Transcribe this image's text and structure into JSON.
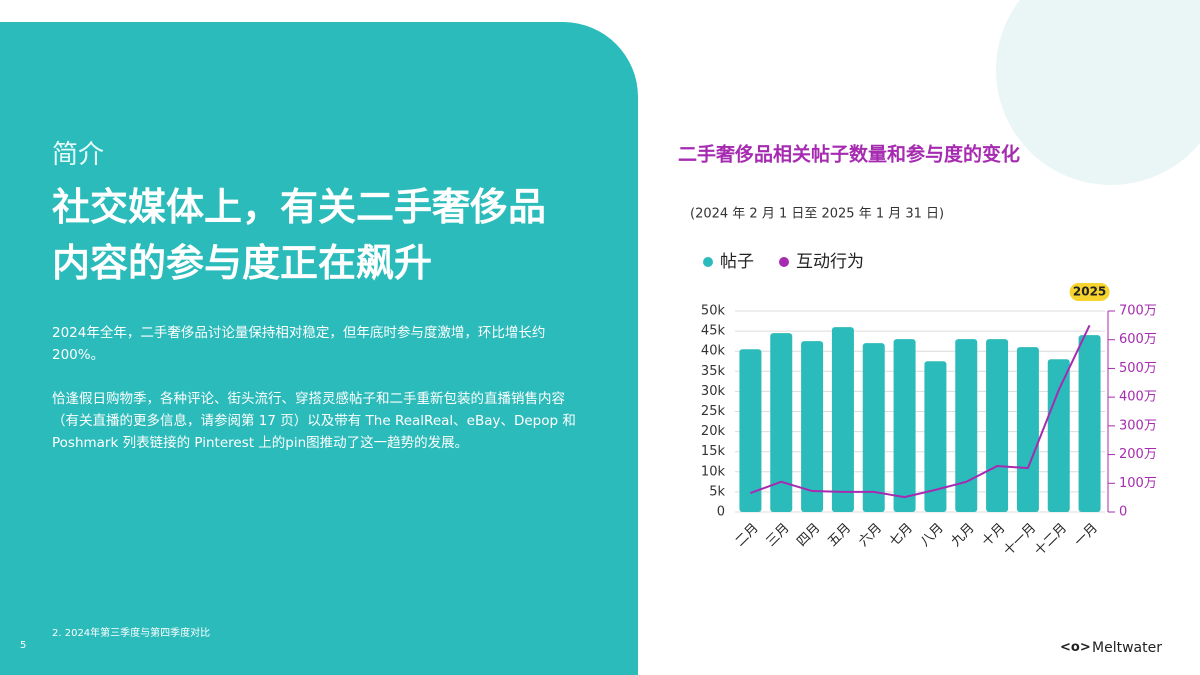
{
  "section": "简介",
  "heading": {
    "lines": [
      "社交媒体上，有关二手奢侈品",
      "内容的参与度正在飙升"
    ]
  },
  "body": {
    "paragraphs": [
      "2024年全年，二手奢侈品讨论量保持相对稳定，但年底时参与度激增，环比增长约 200%。",
      "恰逢假日购物季，各种评论、街头流行、穿搭灵感帖子和二手重新包装的直播销售内容（有关直播的更多信息，请参阅第 17 页）以及带有 The RealReal、eBay、Depop 和 Poshmark 列表链接的 Pinterest 上的pin图推动了这一趋势的发展。"
    ]
  },
  "footnote": "2. 2024年第三季度与第四季度对比",
  "page_number": "5",
  "logo": "Meltwater",
  "chart_data": {
    "type": "bar",
    "title": "二手奢侈品相关帖子数量和参与度的变化",
    "subtitle": "(2024 年 2 月 1 日至 2025 年 1 月 31 日)",
    "annotation": "2025",
    "categories": [
      "二月",
      "三月",
      "四月",
      "五月",
      "六月",
      "七月",
      "八月",
      "九月",
      "十月",
      "十一月",
      "十二月",
      "一月"
    ],
    "series": [
      {
        "name": "帖子",
        "type": "bar",
        "color": "#2bbbbb",
        "values": [
          40500,
          44500,
          42500,
          46000,
          42000,
          43000,
          37500,
          43000,
          43000,
          41000,
          38000,
          44000
        ]
      },
      {
        "name": "互动行为",
        "type": "line",
        "axis": "y2",
        "color": "#a62bb0",
        "values": [
          660000,
          1050000,
          730000,
          700000,
          700000,
          520000,
          770000,
          1050000,
          1600000,
          1530000,
          4250000,
          6500000
        ]
      }
    ],
    "ylim": [
      0,
      50000
    ],
    "yticks": [
      0,
      {
        "value": 5000,
        "label": "5k"
      },
      {
        "value": 10000,
        "label": "10k"
      },
      {
        "value": 15000,
        "label": "15k"
      },
      {
        "value": 20000,
        "label": "20k"
      },
      {
        "value": 25000,
        "label": "25k"
      },
      {
        "value": 30000,
        "label": "30k"
      },
      {
        "value": 35000,
        "label": "35k"
      },
      {
        "value": 40000,
        "label": "40k"
      },
      {
        "value": 45000,
        "label": "45k"
      },
      {
        "value": 50000,
        "label": "50k"
      }
    ],
    "y2lim": [
      0,
      7000000
    ],
    "y2ticks": [
      0,
      {
        "value": 1000000,
        "label": "100万"
      },
      {
        "value": 2000000,
        "label": "200万"
      },
      {
        "value": 3000000,
        "label": "300万"
      },
      {
        "value": 4000000,
        "label": "400万"
      },
      {
        "value": 5000000,
        "label": "500万"
      },
      {
        "value": 6000000,
        "label": "600万"
      },
      {
        "value": 7000000,
        "label": "700万"
      }
    ],
    "grid": true,
    "legend": "top"
  }
}
